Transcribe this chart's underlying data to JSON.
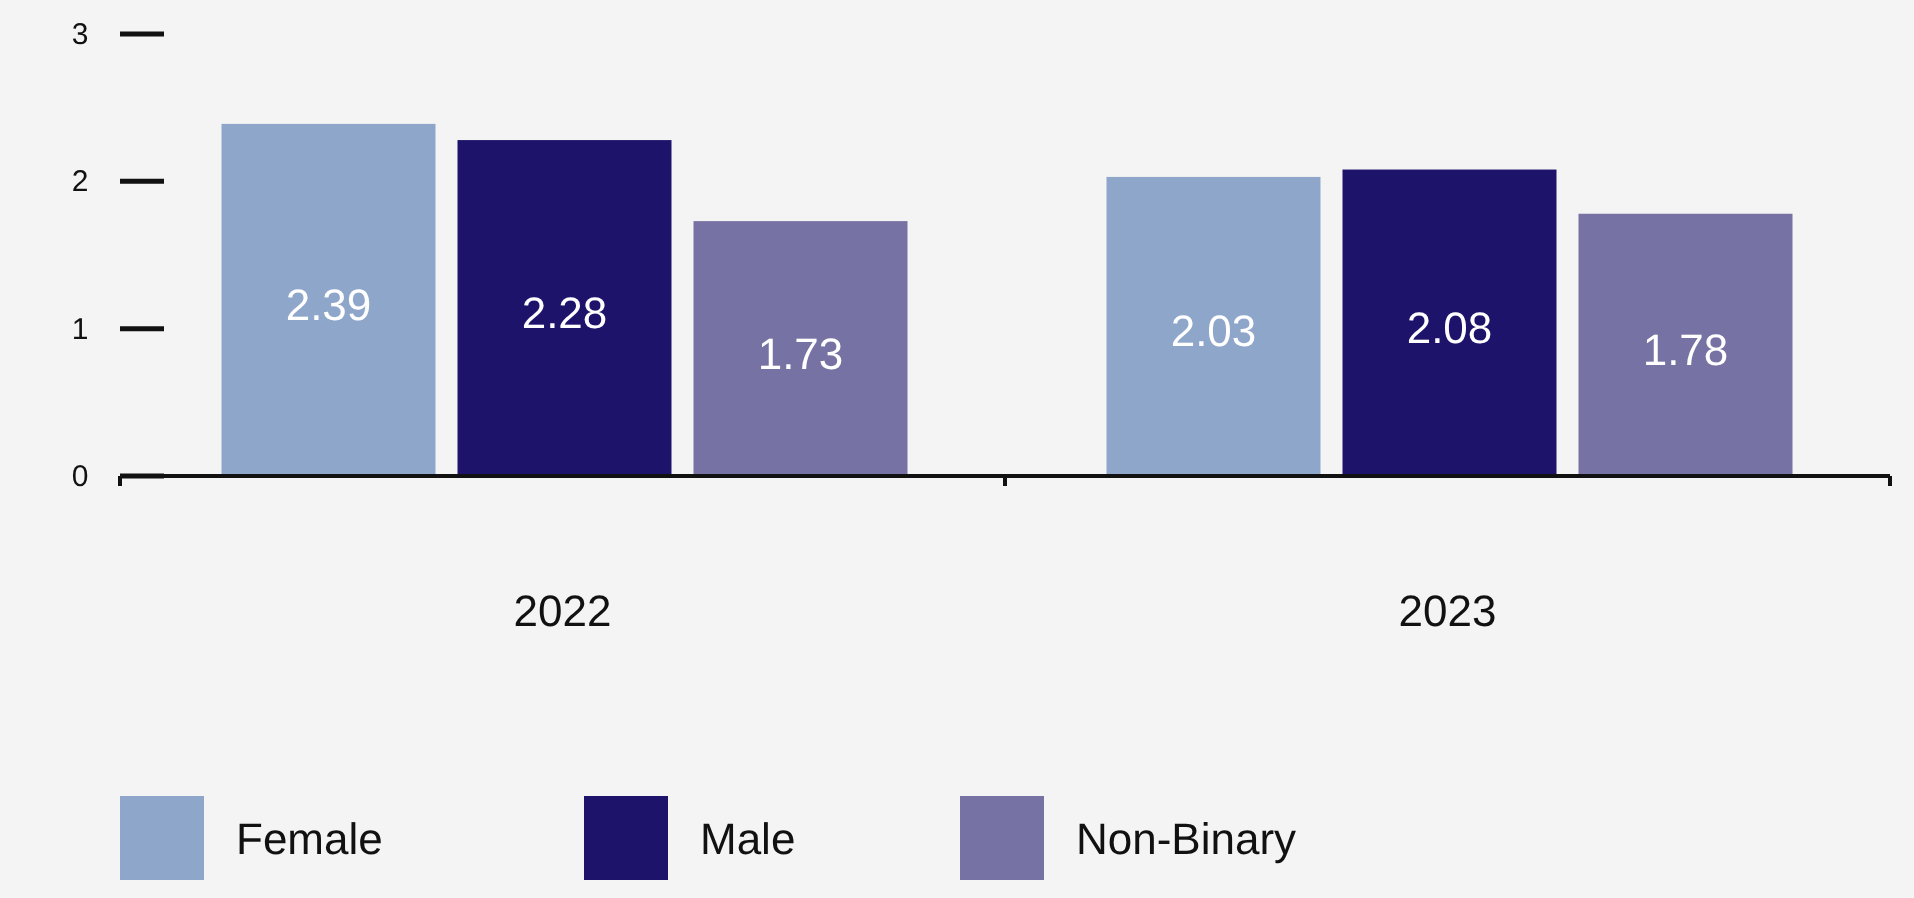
{
  "chart_data": {
    "type": "bar",
    "categories": [
      "2022",
      "2023"
    ],
    "series": [
      {
        "name": "Female",
        "color": "#8fa6cb",
        "values": [
          2.39,
          2.03
        ]
      },
      {
        "name": "Male",
        "color": "#1e136b",
        "values": [
          2.28,
          2.08
        ]
      },
      {
        "name": "Non-Binary",
        "color": "#7672a3",
        "values": [
          1.73,
          1.78
        ]
      }
    ],
    "ylim": [
      0,
      3
    ],
    "yticks": [
      0,
      1,
      2,
      3
    ],
    "data_labels": true,
    "grid": false,
    "legend": "bottom"
  }
}
